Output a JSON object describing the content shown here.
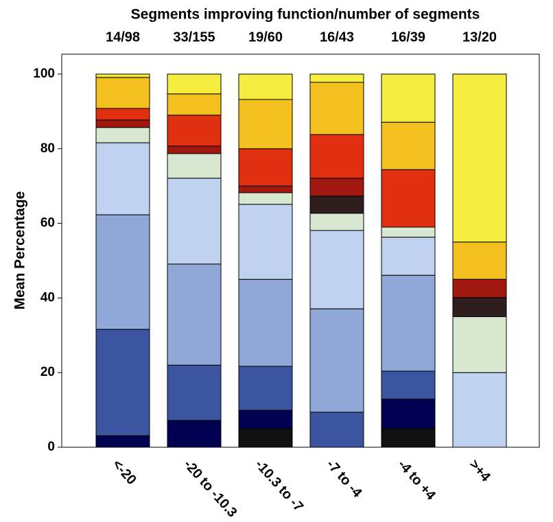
{
  "chart_data": {
    "type": "stacked_bar",
    "title": "Segments improving function/number of segments",
    "top_labels": [
      "14/98",
      "33/155",
      "19/60",
      "16/43",
      "16/39",
      "13/20"
    ],
    "y_label": "Mean Percentage",
    "categories": [
      "<-20",
      "-20 to -10.3",
      "-10.3 to -7",
      "-7 to -4",
      "-4 to +4",
      ">+4"
    ],
    "ylim": [
      0,
      100
    ],
    "yticks": [
      0,
      20,
      40,
      60,
      80,
      100
    ],
    "series": [
      {
        "color": "#111111",
        "values": [
          0,
          0,
          5.0,
          0,
          5.0,
          0
        ]
      },
      {
        "color": "#000050",
        "values": [
          3.1,
          7.2,
          4.9,
          0,
          7.9,
          0
        ]
      },
      {
        "color": "#3b55a0",
        "values": [
          28.5,
          14.8,
          11.8,
          9.4,
          7.5,
          0
        ]
      },
      {
        "color": "#8fa8d8",
        "values": [
          30.7,
          27.1,
          23.3,
          27.7,
          25.7,
          0
        ]
      },
      {
        "color": "#bed2f0",
        "values": [
          19.3,
          23.0,
          20.1,
          21.0,
          10.2,
          20.0
        ]
      },
      {
        "color": "#d8e8d0",
        "values": [
          4.1,
          6.6,
          3.1,
          4.6,
          2.7,
          15.0
        ]
      },
      {
        "color": "#2e1e1e",
        "values": [
          0,
          0,
          0,
          4.6,
          0,
          5.1
        ]
      },
      {
        "color": "#a01810",
        "values": [
          2.0,
          2.0,
          1.8,
          4.8,
          0,
          4.9
        ]
      },
      {
        "color": "#e03010",
        "values": [
          3.1,
          8.3,
          10.0,
          11.7,
          15.4,
          0
        ]
      },
      {
        "color": "#f4c020",
        "values": [
          8.3,
          5.7,
          13.2,
          14.0,
          12.7,
          10.0
        ]
      },
      {
        "color": "#f5ee40",
        "values": [
          0.9,
          5.3,
          6.8,
          2.2,
          12.9,
          45.0
        ]
      }
    ]
  }
}
